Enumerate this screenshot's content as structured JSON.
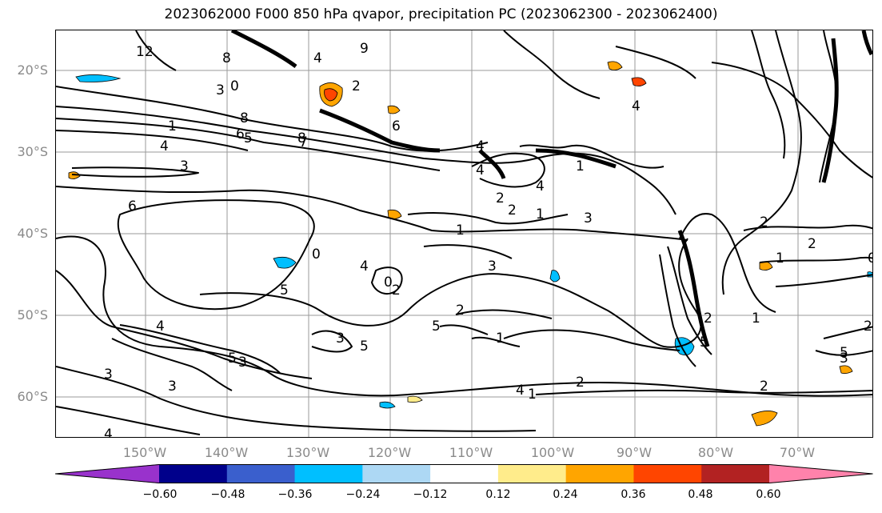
{
  "title": "2023062000 F000 850 hPa qvapor, precipitation PC (2023062300 - 2023062400)",
  "lat_labels": [
    "20°S",
    "30°S",
    "40°S",
    "50°S",
    "60°S"
  ],
  "lon_labels": [
    "150°W",
    "140°W",
    "130°W",
    "120°W",
    "110°W",
    "100°W",
    "90°W",
    "80°W",
    "70°W"
  ],
  "contour_labels": [
    "12",
    "9",
    "4",
    "0",
    "8",
    "6",
    "4",
    "3",
    "5",
    "2",
    "1",
    "7",
    "8",
    "6",
    "4",
    "4",
    "4",
    "3",
    "0",
    "5",
    "6",
    "4",
    "5",
    "3",
    "5",
    "4",
    "3",
    "5",
    "2",
    "1",
    "1",
    "2",
    "4",
    "3",
    "3",
    "4",
    "2",
    "0",
    "1",
    "3",
    "2",
    "1",
    "2",
    "0",
    "5",
    "2",
    "1",
    "2",
    "5",
    "3",
    "4",
    "2",
    "2",
    "1",
    "1",
    "3",
    "8",
    "2"
  ],
  "colorbar": {
    "ticks": [
      "−0.60",
      "−0.48",
      "−0.36",
      "−0.24",
      "−0.12",
      "0.12",
      "0.24",
      "0.36",
      "0.48",
      "0.60"
    ],
    "colors": [
      "#9932cc",
      "#00008b",
      "#3a5fcd",
      "#00bfff",
      "#add8f4",
      "#ffffff",
      "#ffec8b",
      "#ffa500",
      "#ff4500",
      "#b22222",
      "#ff82ab"
    ]
  }
}
